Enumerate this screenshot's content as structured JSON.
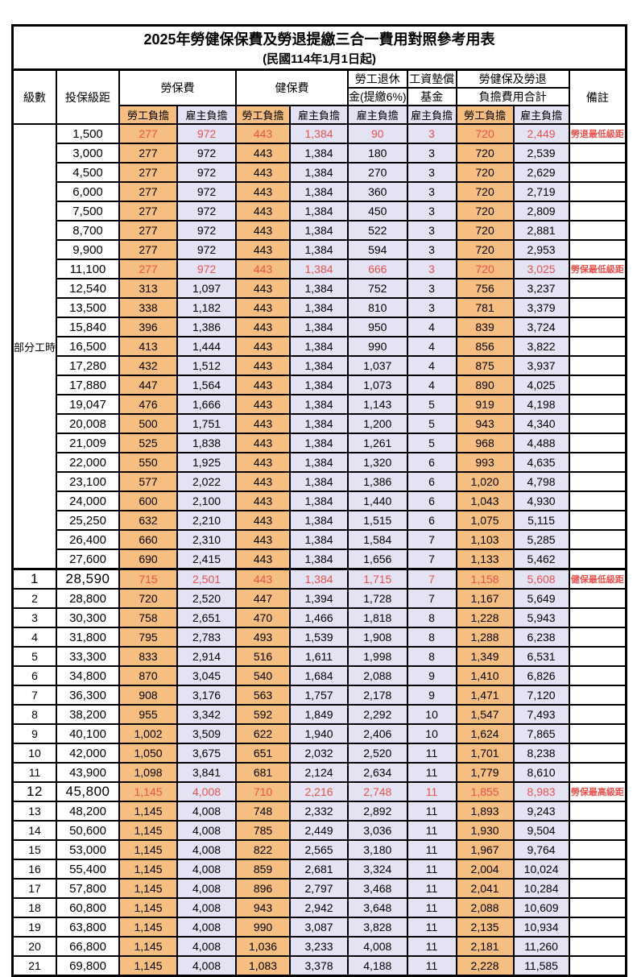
{
  "title": "2025年勞健保保費及勞退提繳三合一費用對照參考用表",
  "subtitle": "(民國114年1月1日起)",
  "header": {
    "level": "級數",
    "bracket": "投保級距",
    "labor_fee": "勞保費",
    "health_fee": "健保費",
    "pension_line1": "勞工退休",
    "pension_line2": "金(提繳6%)",
    "fund_line1": "工資墊償",
    "fund_line2": "基金",
    "total_line1": "勞健保及勞退",
    "total_line2": "負擔費用合計",
    "remark": "備註",
    "worker": "勞工負擔",
    "employer": "雇主負擔"
  },
  "colors": {
    "worker_column_bg": "#f7be81",
    "employer_column_bg": "#e4e3f3",
    "highlight_text": "#e8524e"
  },
  "table": {
    "part_time": {
      "label": "部分工時",
      "row_count": 23
    },
    "rows": [
      {
        "bracket": "1,500",
        "values": [
          "277",
          "972",
          "443",
          "1,384",
          "90",
          "3",
          "720",
          "2,449"
        ],
        "remark": "勞退最低級距",
        "highlight": true
      },
      {
        "bracket": "3,000",
        "values": [
          "277",
          "972",
          "443",
          "1,384",
          "180",
          "3",
          "720",
          "2,539"
        ]
      },
      {
        "bracket": "4,500",
        "values": [
          "277",
          "972",
          "443",
          "1,384",
          "270",
          "3",
          "720",
          "2,629"
        ]
      },
      {
        "bracket": "6,000",
        "values": [
          "277",
          "972",
          "443",
          "1,384",
          "360",
          "3",
          "720",
          "2,719"
        ]
      },
      {
        "bracket": "7,500",
        "values": [
          "277",
          "972",
          "443",
          "1,384",
          "450",
          "3",
          "720",
          "2,809"
        ]
      },
      {
        "bracket": "8,700",
        "values": [
          "277",
          "972",
          "443",
          "1,384",
          "522",
          "3",
          "720",
          "2,881"
        ]
      },
      {
        "bracket": "9,900",
        "values": [
          "277",
          "972",
          "443",
          "1,384",
          "594",
          "3",
          "720",
          "2,953"
        ]
      },
      {
        "bracket": "11,100",
        "values": [
          "277",
          "972",
          "443",
          "1,384",
          "666",
          "3",
          "720",
          "3,025"
        ],
        "remark": "勞保最低級距",
        "highlight": true
      },
      {
        "bracket": "12,540",
        "values": [
          "313",
          "1,097",
          "443",
          "1,384",
          "752",
          "3",
          "756",
          "3,237"
        ]
      },
      {
        "bracket": "13,500",
        "values": [
          "338",
          "1,182",
          "443",
          "1,384",
          "810",
          "3",
          "781",
          "3,379"
        ]
      },
      {
        "bracket": "15,840",
        "values": [
          "396",
          "1,386",
          "443",
          "1,384",
          "950",
          "4",
          "839",
          "3,724"
        ]
      },
      {
        "bracket": "16,500",
        "values": [
          "413",
          "1,444",
          "443",
          "1,384",
          "990",
          "4",
          "856",
          "3,822"
        ]
      },
      {
        "bracket": "17,280",
        "values": [
          "432",
          "1,512",
          "443",
          "1,384",
          "1,037",
          "4",
          "875",
          "3,937"
        ]
      },
      {
        "bracket": "17,880",
        "values": [
          "447",
          "1,564",
          "443",
          "1,384",
          "1,073",
          "4",
          "890",
          "4,025"
        ]
      },
      {
        "bracket": "19,047",
        "values": [
          "476",
          "1,666",
          "443",
          "1,384",
          "1,143",
          "5",
          "919",
          "4,198"
        ]
      },
      {
        "bracket": "20,008",
        "values": [
          "500",
          "1,751",
          "443",
          "1,384",
          "1,200",
          "5",
          "943",
          "4,340"
        ]
      },
      {
        "bracket": "21,009",
        "values": [
          "525",
          "1,838",
          "443",
          "1,384",
          "1,261",
          "5",
          "968",
          "4,488"
        ]
      },
      {
        "bracket": "22,000",
        "values": [
          "550",
          "1,925",
          "443",
          "1,384",
          "1,320",
          "6",
          "993",
          "4,635"
        ]
      },
      {
        "bracket": "23,100",
        "values": [
          "577",
          "2,022",
          "443",
          "1,384",
          "1,386",
          "6",
          "1,020",
          "4,798"
        ]
      },
      {
        "bracket": "24,000",
        "values": [
          "600",
          "2,100",
          "443",
          "1,384",
          "1,440",
          "6",
          "1,043",
          "4,930"
        ]
      },
      {
        "bracket": "25,250",
        "values": [
          "632",
          "2,210",
          "443",
          "1,384",
          "1,515",
          "6",
          "1,075",
          "5,115"
        ]
      },
      {
        "bracket": "26,400",
        "values": [
          "660",
          "2,310",
          "443",
          "1,384",
          "1,584",
          "7",
          "1,103",
          "5,285"
        ]
      },
      {
        "bracket": "27,600",
        "values": [
          "690",
          "2,415",
          "443",
          "1,384",
          "1,656",
          "7",
          "1,133",
          "5,462"
        ]
      },
      {
        "level": "1",
        "bracket": "28,590",
        "values": [
          "715",
          "2,501",
          "443",
          "1,384",
          "1,715",
          "7",
          "1,158",
          "5,608"
        ],
        "remark": "健保最低級距",
        "highlight": true,
        "bold": true,
        "section_start": true
      },
      {
        "level": "2",
        "bracket": "28,800",
        "values": [
          "720",
          "2,520",
          "447",
          "1,394",
          "1,728",
          "7",
          "1,167",
          "5,649"
        ]
      },
      {
        "level": "3",
        "bracket": "30,300",
        "values": [
          "758",
          "2,651",
          "470",
          "1,466",
          "1,818",
          "8",
          "1,228",
          "5,943"
        ]
      },
      {
        "level": "4",
        "bracket": "31,800",
        "values": [
          "795",
          "2,783",
          "493",
          "1,539",
          "1,908",
          "8",
          "1,288",
          "6,238"
        ]
      },
      {
        "level": "5",
        "bracket": "33,300",
        "values": [
          "833",
          "2,914",
          "516",
          "1,611",
          "1,998",
          "8",
          "1,349",
          "6,531"
        ]
      },
      {
        "level": "6",
        "bracket": "34,800",
        "values": [
          "870",
          "3,045",
          "540",
          "1,684",
          "2,088",
          "9",
          "1,410",
          "6,826"
        ]
      },
      {
        "level": "7",
        "bracket": "36,300",
        "values": [
          "908",
          "3,176",
          "563",
          "1,757",
          "2,178",
          "9",
          "1,471",
          "7,120"
        ]
      },
      {
        "level": "8",
        "bracket": "38,200",
        "values": [
          "955",
          "3,342",
          "592",
          "1,849",
          "2,292",
          "10",
          "1,547",
          "7,493"
        ]
      },
      {
        "level": "9",
        "bracket": "40,100",
        "values": [
          "1,002",
          "3,509",
          "622",
          "1,940",
          "2,406",
          "10",
          "1,624",
          "7,865"
        ]
      },
      {
        "level": "10",
        "bracket": "42,000",
        "values": [
          "1,050",
          "3,675",
          "651",
          "2,032",
          "2,520",
          "11",
          "1,701",
          "8,238"
        ]
      },
      {
        "level": "11",
        "bracket": "43,900",
        "values": [
          "1,098",
          "3,841",
          "681",
          "2,124",
          "2,634",
          "11",
          "1,779",
          "8,610"
        ]
      },
      {
        "level": "12",
        "bracket": "45,800",
        "values": [
          "1,145",
          "4,008",
          "710",
          "2,216",
          "2,748",
          "11",
          "1,855",
          "8,983"
        ],
        "remark": "勞保最高級距",
        "highlight": true,
        "bold": true
      },
      {
        "level": "13",
        "bracket": "48,200",
        "values": [
          "1,145",
          "4,008",
          "748",
          "2,332",
          "2,892",
          "11",
          "1,893",
          "9,243"
        ]
      },
      {
        "level": "14",
        "bracket": "50,600",
        "values": [
          "1,145",
          "4,008",
          "785",
          "2,449",
          "3,036",
          "11",
          "1,930",
          "9,504"
        ]
      },
      {
        "level": "15",
        "bracket": "53,000",
        "values": [
          "1,145",
          "4,008",
          "822",
          "2,565",
          "3,180",
          "11",
          "1,967",
          "9,764"
        ]
      },
      {
        "level": "16",
        "bracket": "55,400",
        "values": [
          "1,145",
          "4,008",
          "859",
          "2,681",
          "3,324",
          "11",
          "2,004",
          "10,024"
        ]
      },
      {
        "level": "17",
        "bracket": "57,800",
        "values": [
          "1,145",
          "4,008",
          "896",
          "2,797",
          "3,468",
          "11",
          "2,041",
          "10,284"
        ]
      },
      {
        "level": "18",
        "bracket": "60,800",
        "values": [
          "1,145",
          "4,008",
          "943",
          "2,942",
          "3,648",
          "11",
          "2,088",
          "10,609"
        ]
      },
      {
        "level": "19",
        "bracket": "63,800",
        "values": [
          "1,145",
          "4,008",
          "990",
          "3,087",
          "3,828",
          "11",
          "2,135",
          "10,934"
        ]
      },
      {
        "level": "20",
        "bracket": "66,800",
        "values": [
          "1,145",
          "4,008",
          "1,036",
          "3,233",
          "4,008",
          "11",
          "2,181",
          "11,260"
        ]
      },
      {
        "level": "21",
        "bracket": "69,800",
        "values": [
          "1,145",
          "4,008",
          "1,083",
          "3,378",
          "4,188",
          "11",
          "2,228",
          "11,585"
        ]
      }
    ]
  }
}
